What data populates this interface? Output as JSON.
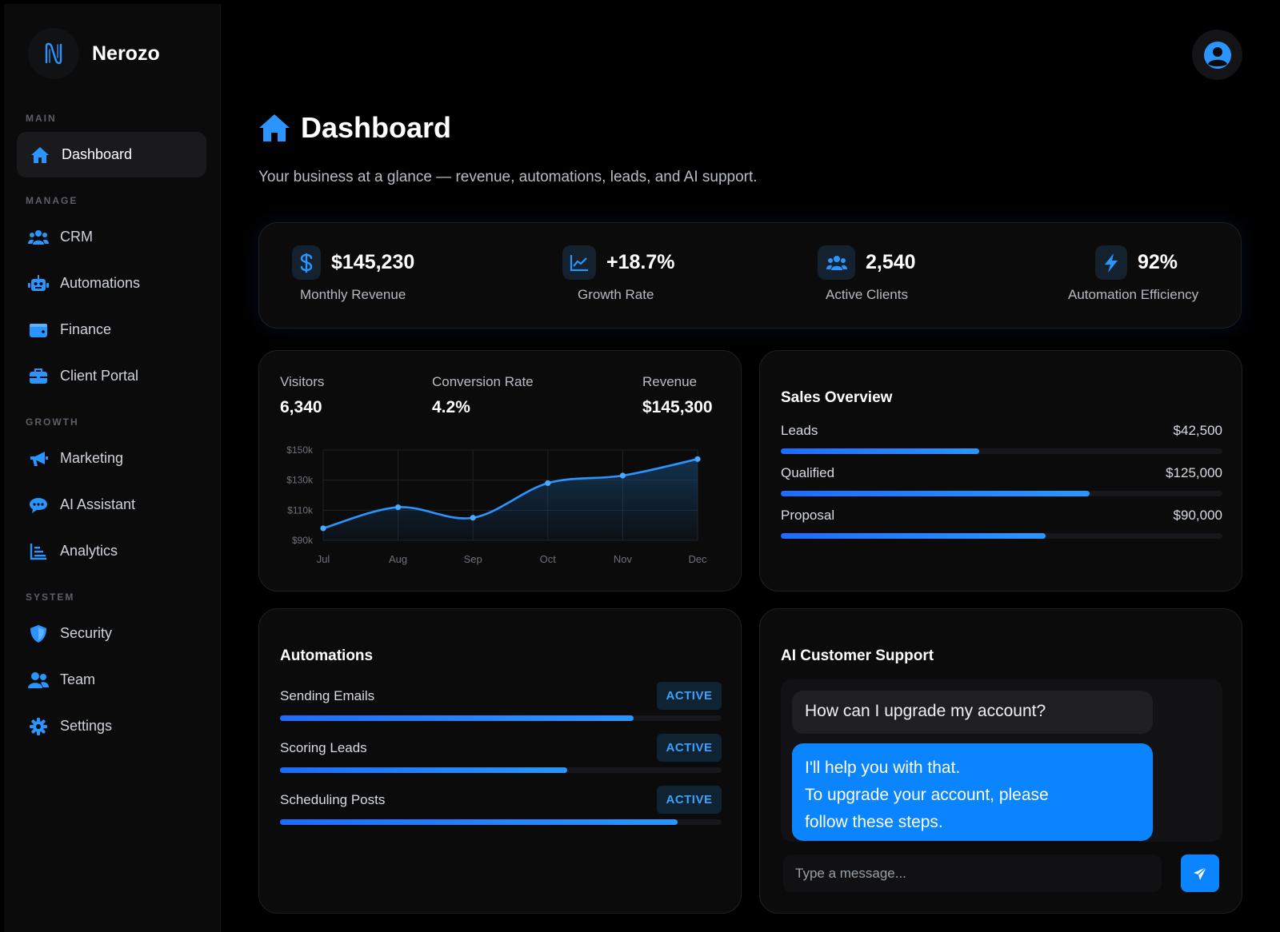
{
  "brand": {
    "name": "Nerozo",
    "logo_icon": "n-logo-icon"
  },
  "sidebar": {
    "sections": [
      {
        "label": "MAIN"
      },
      {
        "label": "MANAGE"
      },
      {
        "label": "GROWTH"
      },
      {
        "label": "SYSTEM"
      }
    ],
    "items": [
      {
        "label": "Dashboard",
        "icon": "home-icon",
        "active": true
      },
      {
        "label": "CRM",
        "icon": "users-icon"
      },
      {
        "label": "Automations",
        "icon": "robot-icon"
      },
      {
        "label": "Finance",
        "icon": "wallet-icon"
      },
      {
        "label": "Client Portal",
        "icon": "briefcase-icon"
      },
      {
        "label": "Marketing",
        "icon": "megaphone-icon"
      },
      {
        "label": "AI Assistant",
        "icon": "chat-icon"
      },
      {
        "label": "Analytics",
        "icon": "bar-chart-icon"
      },
      {
        "label": "Security",
        "icon": "shield-icon"
      },
      {
        "label": "Team",
        "icon": "team-icon"
      },
      {
        "label": "Settings",
        "icon": "gear-icon"
      }
    ]
  },
  "header": {
    "title": "Dashboard",
    "subtitle": "Your business at a glance — revenue, automations, leads, and AI support."
  },
  "kpis": [
    {
      "value": "$145,230",
      "label": "Monthly Revenue",
      "icon": "dollar-icon"
    },
    {
      "value": "+18.7%",
      "label": "Growth Rate",
      "icon": "line-chart-icon"
    },
    {
      "value": "2,540",
      "label": "Active Clients",
      "icon": "users-icon"
    },
    {
      "value": "92%",
      "label": "Automation Efficiency",
      "icon": "bolt-icon"
    }
  ],
  "traffic": {
    "stats": [
      {
        "label": "Visitors",
        "value": "6,340"
      },
      {
        "label": "Conversion Rate",
        "value": "4.2%"
      },
      {
        "label": "Revenue",
        "value": "$145,300"
      }
    ]
  },
  "chart_data": {
    "type": "area",
    "title": "",
    "xlabel": "",
    "ylabel": "",
    "categories": [
      "Jul",
      "Aug",
      "Sep",
      "Oct",
      "Nov",
      "Dec"
    ],
    "y_ticks": [
      "$150k",
      "$130k",
      "$110k",
      "$90k"
    ],
    "ylim": [
      90,
      150
    ],
    "series": [
      {
        "values": [
          98,
          112,
          105,
          128,
          133,
          144
        ]
      }
    ],
    "grid": true,
    "color": "#2b95ff"
  },
  "sales_overview": {
    "title": "Sales Overview",
    "rows": [
      {
        "label": "Leads",
        "value": "$42,500",
        "progress": 0.45
      },
      {
        "label": "Qualified",
        "value": "$125,000",
        "progress": 0.7
      },
      {
        "label": "Proposal",
        "value": "$90,000",
        "progress": 0.6
      }
    ]
  },
  "automations": {
    "title": "Automations",
    "rows": [
      {
        "label": "Sending Emails",
        "status": "ACTIVE",
        "progress": 0.8
      },
      {
        "label": "Scoring Leads",
        "status": "ACTIVE",
        "progress": 0.65
      },
      {
        "label": "Scheduling Posts",
        "status": "ACTIVE",
        "progress": 0.9
      }
    ]
  },
  "support": {
    "title": "AI Customer Support",
    "user_message": "How can I upgrade my account?",
    "bot_message_line1": "I'll help you with that.",
    "bot_message_line2": "To upgrade your account, please",
    "bot_message_line3": "follow these steps.",
    "input_placeholder": "Type a message...",
    "send_icon": "send-icon"
  },
  "colors": {
    "accent": "#0a84ff",
    "background": "#000000",
    "card": "#0b0b0c"
  }
}
